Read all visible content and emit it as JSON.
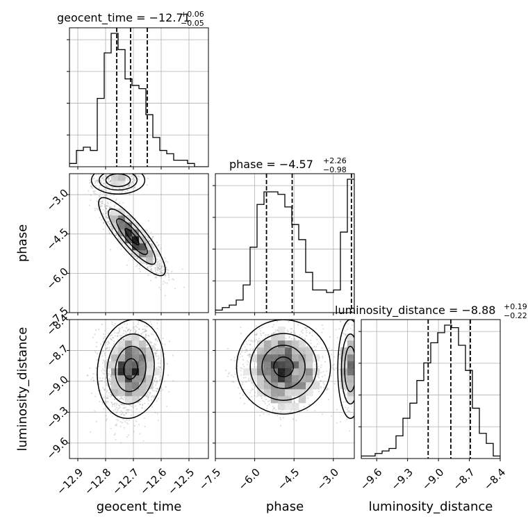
{
  "chart_data": {
    "type": "corner",
    "parameters": [
      "geocent_time",
      "phase",
      "luminosity_distance"
    ],
    "grid": true,
    "axes": {
      "geocent_time": {
        "label": "geocent_time",
        "range": [
          -12.93,
          -12.43
        ],
        "ticks": [
          -12.9,
          -12.8,
          -12.7,
          -12.6,
          -12.5
        ],
        "tick_labels": [
          "−12.9",
          "−12.8",
          "−12.7",
          "−12.6",
          "−12.5"
        ]
      },
      "phase": {
        "label": "phase",
        "range": [
          -7.5,
          -2.2
        ],
        "ticks": [
          -7.5,
          -6.0,
          -4.5,
          -3.0
        ],
        "tick_labels": [
          "−7.5",
          "−6.0",
          "−4.5",
          "−3.0"
        ]
      },
      "luminosity_distance": {
        "label": "luminosity_distance",
        "range": [
          -9.75,
          -8.4
        ],
        "ticks": [
          -9.6,
          -9.3,
          -9.0,
          -8.7,
          -8.4
        ],
        "tick_labels": [
          "−9.6",
          "−9.3",
          "−9.0",
          "−8.7",
          "−8.4"
        ]
      }
    },
    "titles": {
      "geocent_time": {
        "prefix": "geocent_time = −12.71",
        "upper": "+0.06",
        "lower": "−0.05"
      },
      "phase": {
        "prefix": "phase = −4.57",
        "upper": "+2.26",
        "lower": "−0.98"
      },
      "luminosity_distance": {
        "prefix": "luminosity_distance = −8.88",
        "upper": "+0.19",
        "lower": "−0.22"
      }
    },
    "histograms": {
      "geocent_time": {
        "bin_edges": [
          -12.93,
          -12.905,
          -12.88,
          -12.855,
          -12.83,
          -12.805,
          -12.78,
          -12.755,
          -12.73,
          -12.705,
          -12.68,
          -12.655,
          -12.63,
          -12.605,
          -12.58,
          -12.555,
          -12.53,
          -12.505,
          -12.48,
          -12.455,
          -12.43
        ],
        "counts": [
          1,
          5,
          6,
          5,
          21,
          35,
          41,
          36,
          27,
          25,
          24,
          16,
          9,
          5,
          4,
          2,
          2,
          1,
          0,
          0
        ],
        "quantiles": [
          -12.76,
          -12.71,
          -12.65
        ]
      },
      "phase": {
        "bin_edges": [
          -7.5,
          -7.235,
          -6.97,
          -6.705,
          -6.44,
          -6.175,
          -5.91,
          -5.645,
          -5.38,
          -5.115,
          -4.85,
          -4.585,
          -4.32,
          -4.055,
          -3.79,
          -3.525,
          -3.26,
          -2.995,
          -2.73,
          -2.465,
          -2.2
        ],
        "counts": [
          1,
          2,
          3,
          5,
          11,
          26,
          43,
          48,
          48,
          47,
          42,
          35,
          29,
          16,
          9,
          9,
          8,
          9,
          32,
          53
        ],
        "quantiles": [
          -5.55,
          -4.57,
          -2.31
        ]
      },
      "luminosity_distance": {
        "bin_edges": [
          -9.75,
          -9.6825,
          -9.615,
          -9.5475,
          -9.48,
          -9.4125,
          -9.345,
          -9.2775,
          -9.21,
          -9.1425,
          -9.075,
          -9.0075,
          -8.94,
          -8.8725,
          -8.805,
          -8.7375,
          -8.67,
          -8.6025,
          -8.535,
          -8.4675,
          -8.4
        ],
        "counts": [
          1,
          1,
          2,
          3,
          4,
          9,
          16,
          22,
          31,
          38,
          46,
          50,
          53,
          52,
          45,
          35,
          20,
          10,
          6,
          1
        ],
        "quantiles": [
          -9.1,
          -8.88,
          -8.69
        ]
      }
    },
    "joint": [
      {
        "x": "geocent_time",
        "y": "phase",
        "modes": [
          {
            "x_mean": -12.705,
            "y_mean": -4.6,
            "x_sd": 0.05,
            "y_sd": 0.62,
            "corr": -0.86,
            "weight": 0.84
          },
          {
            "x_mean": -12.755,
            "y_mean": -2.45,
            "x_sd": 0.04,
            "y_sd": 0.22,
            "corr": 0.0,
            "weight": 0.16
          }
        ]
      },
      {
        "x": "geocent_time",
        "y": "luminosity_distance",
        "modes": [
          {
            "x_mean": -12.71,
            "y_mean": -8.88,
            "x_sd": 0.05,
            "y_sd": 0.2,
            "corr": 0.1,
            "weight": 1.0
          }
        ]
      },
      {
        "x": "phase",
        "y": "luminosity_distance",
        "modes": [
          {
            "x_mean": -4.9,
            "y_mean": -8.86,
            "x_sd": 0.75,
            "y_sd": 0.19,
            "corr": 0.0,
            "weight": 0.82
          },
          {
            "x_mean": -2.35,
            "y_mean": -8.88,
            "x_sd": 0.2,
            "y_sd": 0.2,
            "corr": 0.0,
            "weight": 0.18
          }
        ]
      }
    ],
    "colors": {
      "line": "#000000",
      "quantile": "#000000",
      "grid": "#b0b0b0",
      "scatter": "#888888",
      "density": "#000000"
    }
  }
}
